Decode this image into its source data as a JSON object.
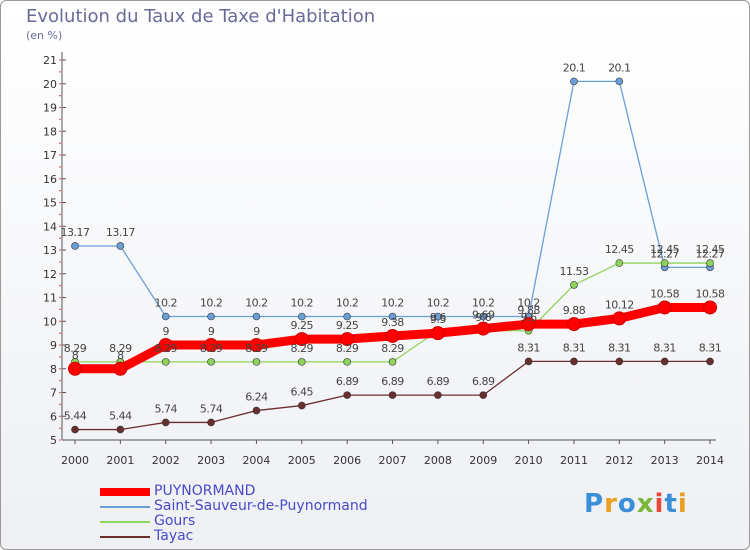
{
  "title": "Evolution du Taux de Taxe d'Habitation",
  "unit_label": "(en %)",
  "logo_text": "Proxiti",
  "chart_data": {
    "type": "line",
    "title": "Evolution du Taux de Taxe d'Habitation",
    "ylabel": "(en %)",
    "xlabel": "",
    "ylim": [
      5,
      21
    ],
    "yticks": [
      5,
      6,
      7,
      8,
      9,
      10,
      11,
      12,
      13,
      14,
      15,
      16,
      17,
      18,
      19,
      20,
      21
    ],
    "x": [
      "2000",
      "2001",
      "2002",
      "2003",
      "2004",
      "2005",
      "2006",
      "2007",
      "2008",
      "2009",
      "2010",
      "2011",
      "2012",
      "2013",
      "2014"
    ],
    "grid": false,
    "legend_position": "bottom-left",
    "series": [
      {
        "name": "PUYNORMAND",
        "color": "#ff0000",
        "thick": true,
        "values": [
          8,
          8,
          9,
          9,
          9,
          9.25,
          9.25,
          9.38,
          9.5,
          9.69,
          9.88,
          9.88,
          10.12,
          10.58,
          10.58
        ],
        "labels": [
          "8",
          "8",
          "9",
          "9",
          "9",
          "9.25",
          "9.25",
          "9.38",
          "9.5",
          "9.69",
          "9.88",
          "9.88",
          "10.12",
          "10.58",
          "10.58"
        ]
      },
      {
        "name": "Saint-Sauveur-de-Puynormand",
        "color": "#6a9fd8",
        "thick": false,
        "values": [
          13.17,
          13.17,
          10.2,
          10.2,
          10.2,
          10.2,
          10.2,
          10.2,
          10.2,
          10.2,
          10.2,
          20.1,
          20.1,
          12.27,
          12.27
        ],
        "labels": [
          "13.17",
          "13.17",
          "10.2",
          "10.2",
          "10.2",
          "10.2",
          "10.2",
          "10.2",
          "10.2",
          "10.2",
          "10.2",
          "20.1",
          "20.1",
          "12.27",
          "12.27"
        ]
      },
      {
        "name": "Gours",
        "color": "#8fd45a",
        "thick": false,
        "values": [
          8.29,
          8.29,
          8.29,
          8.29,
          8.29,
          8.29,
          8.29,
          8.29,
          9.6,
          9.6,
          9.6,
          11.53,
          12.45,
          12.45,
          12.45
        ],
        "labels": [
          "8.29",
          "8.29",
          "8.29",
          "8.29",
          "8.29",
          "8.29",
          "8.29",
          "8.29",
          "9.6",
          "9.6",
          "9.6",
          "11.53",
          "12.45",
          "12.45",
          "12.45"
        ]
      },
      {
        "name": "Tayac",
        "color": "#6b2e2e",
        "thick": false,
        "values": [
          5.44,
          5.44,
          5.74,
          5.74,
          6.24,
          6.45,
          6.89,
          6.89,
          6.89,
          6.89,
          8.31,
          8.31,
          8.31,
          8.31,
          8.31
        ],
        "labels": [
          "5.44",
          "5.44",
          "5.74",
          "5.74",
          "6.24",
          "6.45",
          "6.89",
          "6.89",
          "6.89",
          "6.89",
          "8.31",
          "8.31",
          "8.31",
          "8.31",
          "8.31"
        ]
      }
    ]
  }
}
